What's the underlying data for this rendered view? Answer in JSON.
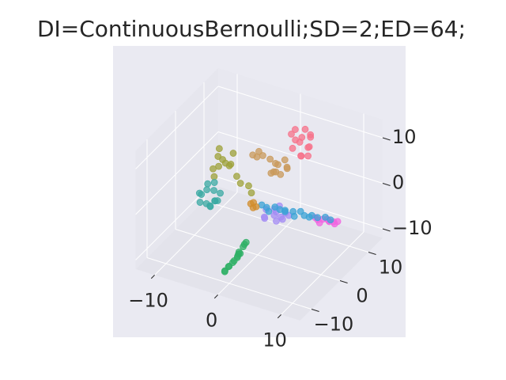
{
  "chart_data": {
    "type": "scatter3d",
    "title": "DI=ContinuousBernoulli;SD=2;ED=64;",
    "xlim": [
      -13,
      13
    ],
    "ylim": [
      -14,
      15
    ],
    "zlim": [
      -12,
      14
    ],
    "xticks": [
      {
        "value": -10,
        "label": "−10"
      },
      0,
      10
    ],
    "yticks": [
      {
        "value": -10,
        "label": "−10"
      },
      0,
      10
    ],
    "zticks": [
      {
        "value": -10,
        "label": "−10"
      },
      0,
      10
    ],
    "grid": true,
    "series": [
      {
        "color": "#f7718a",
        "x": [
          1.2,
          2.5,
          3.1,
          1.8,
          0.9,
          2.9,
          3.6,
          2.1,
          1.5,
          3.3,
          2.6,
          1.0,
          2.8,
          3.9
        ],
        "y": [
          10.5,
          9.2,
          10.8,
          11.5,
          9.8,
          8.7,
          10.1,
          12.0,
          8.9,
          11.2,
          9.5,
          11.0,
          12.3,
          9.0
        ],
        "z": [
          9.5,
          8.1,
          6.2,
          7.4,
          8.8,
          5.6,
          7.0,
          9.0,
          6.5,
          8.3,
          4.9,
          6.8,
          7.9,
          5.8
        ]
      },
      {
        "color": "#c99a5b",
        "x": [
          -0.5,
          0.4,
          -1.2,
          0.1,
          -0.9,
          0.8,
          -1.6,
          -0.2,
          -2.8,
          -3.6,
          -4.3,
          -4.0,
          0.6,
          -1.0
        ],
        "y": [
          8.2,
          7.1,
          8.9,
          9.3,
          7.6,
          8.5,
          7.9,
          6.8,
          8.0,
          8.4,
          7.8,
          8.6,
          9.0,
          6.9
        ],
        "z": [
          2.5,
          1.4,
          2.0,
          3.1,
          1.1,
          2.3,
          3.4,
          1.9,
          3.6,
          3.9,
          3.2,
          2.4,
          1.6,
          1.2
        ]
      },
      {
        "color": "#9ea13a",
        "x": [
          -6.5,
          -5.2,
          -4.8,
          -6.0,
          -5.5,
          -7.2,
          -4.4,
          -6.8,
          -5.0,
          -3.5,
          -2.6,
          -1.8,
          -1.0,
          -5.9
        ],
        "y": [
          0.5,
          -0.8,
          1.2,
          2.0,
          -1.5,
          0.3,
          -0.2,
          1.6,
          2.5,
          0.4,
          -0.3,
          0.8,
          0.0,
          -2.2
        ],
        "z": [
          6.5,
          7.2,
          5.1,
          4.3,
          6.0,
          3.6,
          5.8,
          7.4,
          6.6,
          3.5,
          2.8,
          1.9,
          1.2,
          4.0
        ]
      },
      {
        "color": "#3ba9a3",
        "x": [
          -8.5,
          -7.0,
          -6.2,
          -8.9,
          -7.8,
          -6.6,
          -9.3,
          -7.4,
          -6.0,
          -8.1,
          -7.2,
          -9.0,
          -6.8,
          -8.3
        ],
        "y": [
          1.0,
          -1.2,
          0.6,
          -0.5,
          2.1,
          -2.0,
          0.2,
          1.5,
          -0.8,
          -1.8,
          0.9,
          2.4,
          -0.3,
          0.4
        ],
        "z": [
          -2.0,
          -3.5,
          -1.5,
          -4.0,
          -0.8,
          -3.0,
          -2.6,
          -4.3,
          -2.2,
          -1.1,
          -3.8,
          -1.8,
          -0.6,
          -4.6
        ]
      },
      {
        "color": "#2fb066",
        "x": [
          -1.5,
          -1.1,
          -0.8,
          -0.4,
          0.0,
          0.3,
          0.6,
          0.9,
          1.2,
          1.5,
          1.85,
          -1.3,
          0.1,
          1.0
        ],
        "y": [
          -8.2,
          -7.6,
          -8.5,
          -7.9,
          -8.3,
          -7.7,
          -8.1,
          -8.6,
          -7.8,
          -8.0,
          -8.2,
          -8.7,
          -7.4,
          -8.4
        ],
        "z": [
          -11.0,
          -10.2,
          -9.6,
          -8.9,
          -8.1,
          -7.3,
          -6.5,
          -5.6,
          -4.8,
          -4.0,
          -3.3,
          -10.8,
          -7.9,
          -6.0
        ]
      },
      {
        "color": "#a48cf4",
        "x": [
          1.5,
          2.4,
          3.2,
          4.0,
          2.8,
          1.9,
          3.6,
          4.5,
          2.2,
          3.0,
          4.2,
          1.2
        ],
        "y": [
          -1.0,
          0.5,
          -0.6,
          0.8,
          1.4,
          -1.8,
          0.1,
          -1.3,
          0.9,
          -0.2,
          1.6,
          0.3
        ],
        "z": [
          -2.4,
          -1.2,
          -2.8,
          -1.6,
          -0.9,
          -2.0,
          -2.2,
          -1.4,
          -2.9,
          -1.1,
          -2.5,
          -1.7
        ]
      },
      {
        "color": "#f166e0",
        "x": [
          9.0,
          9.6,
          10.2,
          10.8,
          11.4,
          12.0,
          12.5,
          10.0,
          11.0,
          12.2
        ],
        "y": [
          0.2,
          -0.3,
          0.1,
          0.4,
          -0.2,
          0.0,
          0.3,
          -0.5,
          0.5,
          -0.1
        ],
        "z": [
          0.0,
          0.1,
          0.2,
          0.3,
          0.4,
          0.5,
          0.6,
          -0.3,
          0.0,
          0.2
        ]
      },
      {
        "color": "#3ba3d6",
        "x": [
          0.5,
          1.5,
          2.5,
          3.5,
          4.5,
          5.5,
          6.5,
          7.5,
          8.5,
          9.5,
          10.5,
          11.5,
          2.0,
          4.0,
          6.0,
          8.0
        ],
        "y": [
          0.3,
          -0.2,
          0.5,
          0.0,
          -0.4,
          0.2,
          0.6,
          -0.3,
          0.1,
          -0.1,
          0.4,
          0.0,
          -0.6,
          0.7,
          -0.5,
          0.3
        ],
        "z": [
          -1.0,
          -0.8,
          -0.7,
          -0.5,
          -0.3,
          -0.2,
          0.0,
          0.1,
          0.3,
          0.4,
          0.6,
          0.7,
          -1.2,
          -0.9,
          -0.6,
          -0.4
        ]
      },
      {
        "color": "#d18d2c",
        "x": [
          -1.2,
          -0.6,
          -0.9,
          -0.3
        ],
        "y": [
          0.2,
          -0.3,
          0.5,
          0.1
        ],
        "z": [
          -1.4,
          -1.7,
          -1.2,
          -1.6
        ]
      }
    ]
  }
}
